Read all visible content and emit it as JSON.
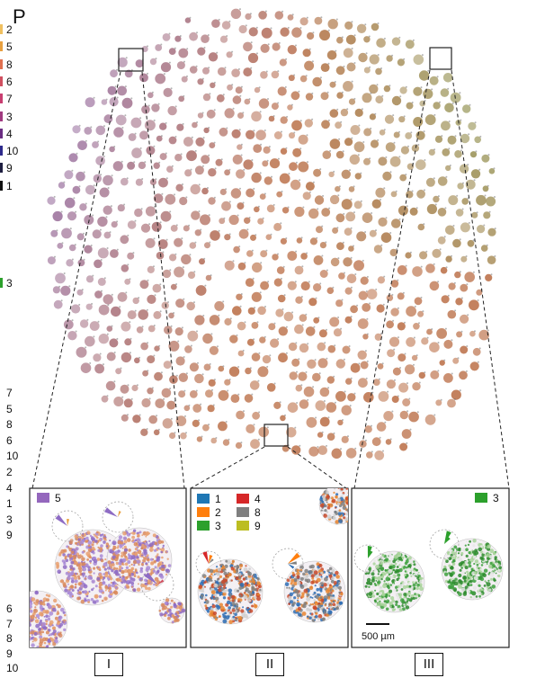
{
  "panel_letter": "P",
  "side_legend_top": [
    {
      "label": "2",
      "color": "#f0c060"
    },
    {
      "label": "5",
      "color": "#e8a040"
    },
    {
      "label": "8",
      "color": "#e07050"
    },
    {
      "label": "6",
      "color": "#d05060"
    },
    {
      "label": "7",
      "color": "#c83e70"
    },
    {
      "label": "3",
      "color": "#a03a80"
    },
    {
      "label": "4",
      "color": "#6a2d82"
    },
    {
      "label": "10",
      "color": "#2e2a8c"
    },
    {
      "label": "9",
      "color": "#1e1e40"
    },
    {
      "label": "1",
      "color": "#111111"
    }
  ],
  "side_legend_mid": [
    {
      "label": "3",
      "color": "#2ca02c"
    }
  ],
  "side_legend_bottom": [
    {
      "label": "7"
    },
    {
      "label": "5"
    },
    {
      "label": "8"
    },
    {
      "label": "6"
    },
    {
      "label": "10"
    },
    {
      "label": "2"
    },
    {
      "label": "4"
    },
    {
      "label": "1"
    },
    {
      "label": "3"
    },
    {
      "label": "9"
    }
  ],
  "side_legend_bottom2": [
    {
      "label": "6"
    },
    {
      "label": "7"
    },
    {
      "label": "8"
    },
    {
      "label": "9"
    },
    {
      "label": "10"
    }
  ],
  "insets": [
    {
      "label": "I",
      "legend": [
        {
          "label": "5",
          "color": "#9467bd"
        }
      ]
    },
    {
      "label": "II",
      "legend": [
        {
          "label": "1",
          "color": "#1f77b4"
        },
        {
          "label": "4",
          "color": "#d62728"
        },
        {
          "label": "2",
          "color": "#ff7f0e"
        },
        {
          "label": "8",
          "color": "#7f7f7f"
        },
        {
          "label": "3",
          "color": "#2ca02c"
        },
        {
          "label": "9",
          "color": "#bcbd22"
        }
      ]
    },
    {
      "label": "III",
      "legend": [
        {
          "label": "3",
          "color": "#2ca02c"
        }
      ],
      "scalebar": "500 µm"
    }
  ]
}
